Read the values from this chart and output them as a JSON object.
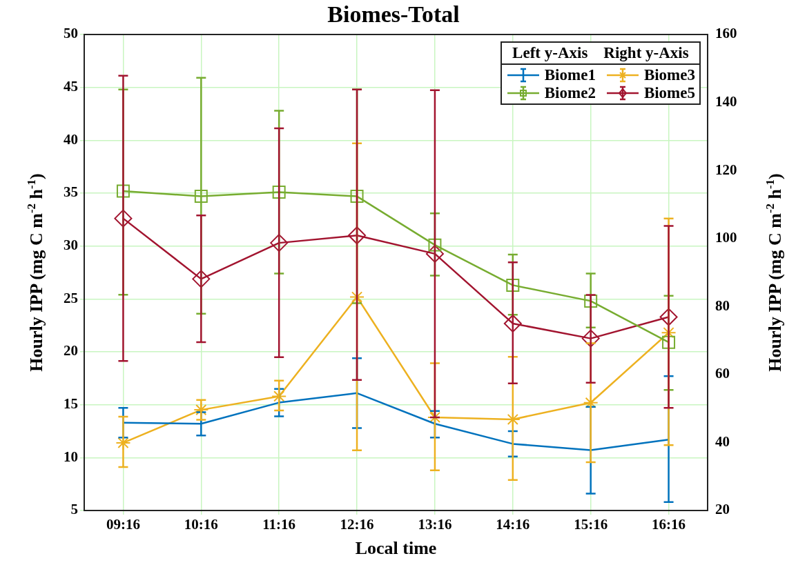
{
  "chart_data": {
    "type": "line",
    "title": "Biomes-Total",
    "xlabel": "Local time",
    "ylabel": "Hourly IPP (mg C m$^{-2}$ h$^{-1}$)",
    "y2label": "Hourly IPP (mg C m$^{-2}$ h$^{-1}$)",
    "legend_title": "Left y-Axis    Right y-Axis",
    "legend": "top right",
    "grid": true,
    "line_style": "solid",
    "categories": [
      "09:16",
      "10:16",
      "11:16",
      "12:16",
      "13:16",
      "14:16",
      "15:16",
      "16:16"
    ],
    "ylim": [
      5,
      50
    ],
    "yticks": [
      5,
      10,
      15,
      20,
      25,
      30,
      35,
      40,
      45,
      50
    ],
    "y2lim": [
      20,
      160
    ],
    "y2ticks": [
      20,
      40,
      60,
      80,
      100,
      120,
      140,
      160
    ],
    "series": [
      {
        "name": "Biome1",
        "color": "#0072bd",
        "marker": "none",
        "values": [
          13.3,
          13.2,
          15.2,
          16.1,
          13.2,
          11.3,
          10.7,
          11.7
        ],
        "errors": [
          [
            11.9,
            14.7
          ],
          [
            12.1,
            14.3
          ],
          [
            13.9,
            16.5
          ],
          [
            12.8,
            19.4
          ],
          [
            11.9,
            14.4
          ],
          [
            10.1,
            12.5
          ],
          [
            6.6,
            14.8
          ],
          [
            5.8,
            17.7
          ]
        ]
      },
      {
        "name": "Biome2",
        "color": "#77ac30",
        "marker": "square",
        "values": [
          35.2,
          34.7,
          35.1,
          34.7,
          30.1,
          26.3,
          24.8,
          20.9
        ],
        "errors": [
          [
            25.4,
            44.8
          ],
          [
            23.6,
            45.9
          ],
          [
            27.4,
            42.8
          ],
          [
            24.6,
            44.8
          ],
          [
            27.2,
            33.1
          ],
          [
            23.5,
            29.2
          ],
          [
            22.3,
            27.4
          ],
          [
            16.4,
            25.3
          ]
        ]
      },
      {
        "name": "Biome3",
        "color": "#edb120",
        "marker": "cross",
        "axis": "y2",
        "values": [
          39.9,
          49.6,
          53.6,
          82.8,
          47.4,
          46.8,
          51.7,
          72.3
        ],
        "errors": [
          [
            32.8,
            47.6
          ],
          [
            46.7,
            52.5
          ],
          [
            49.4,
            58.2
          ],
          [
            37.7,
            128.0
          ],
          [
            31.8,
            63.3
          ],
          [
            29.0,
            65.2
          ],
          [
            34.2,
            69.2
          ],
          [
            39.2,
            105.9
          ]
        ]
      },
      {
        "name": "Biome5",
        "color": "#a2142f",
        "marker": "diamond",
        "axis": "y2",
        "values": [
          105.9,
          88.1,
          98.7,
          100.9,
          95.5,
          75.0,
          70.6,
          76.9
        ],
        "errors": [
          [
            64.0,
            147.9
          ],
          [
            69.5,
            106.8
          ],
          [
            65.1,
            132.4
          ],
          [
            58.4,
            143.8
          ],
          [
            47.4,
            143.6
          ],
          [
            57.4,
            93.0
          ],
          [
            57.6,
            83.4
          ],
          [
            50.2,
            103.7
          ]
        ]
      }
    ]
  }
}
